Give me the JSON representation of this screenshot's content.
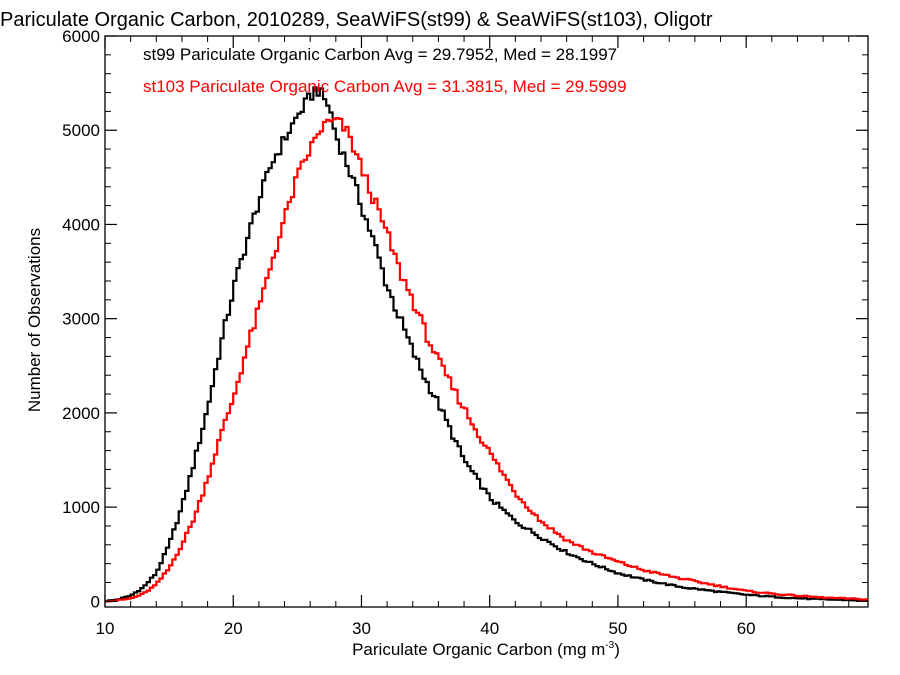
{
  "chart_data": {
    "type": "line",
    "title": "Pariculate Organic Carbon, 2010289, SeaWiFS(st99) & SeaWiFS(st103), Oligotr",
    "xlabel": "Pariculate Organic Carbon (mg m",
    "xlabel_sup": "-3",
    "xlabel_end": ")",
    "ylabel": "Number of Observations",
    "xlim": [
      10,
      69.5
    ],
    "ylim": [
      -60,
      6000
    ],
    "xticks": [
      10,
      20,
      30,
      40,
      50,
      60
    ],
    "yticks": [
      0,
      1000,
      2000,
      3000,
      4000,
      5000,
      6000
    ],
    "grid": false,
    "legend_position": "top-left",
    "series": [
      {
        "name": "st99 Pariculate Organic Carbon Avg = 29.7952, Med = 28.1997",
        "color": "#000000",
        "x": [
          10,
          11,
          12,
          13,
          14,
          15,
          16,
          17,
          18,
          19,
          20,
          21,
          22,
          23,
          24,
          25,
          26,
          26.5,
          27,
          27.5,
          28,
          29,
          30,
          31,
          32,
          33,
          34,
          35,
          36,
          37,
          38,
          39,
          40,
          42,
          44,
          46,
          48,
          50,
          52,
          55,
          58,
          60,
          63,
          66,
          69.5
        ],
        "y": [
          0,
          20,
          60,
          150,
          300,
          600,
          1000,
          1500,
          2050,
          2700,
          3300,
          3800,
          4250,
          4650,
          4900,
          5150,
          5350,
          5450,
          5350,
          5250,
          4950,
          4600,
          4200,
          3800,
          3350,
          3000,
          2650,
          2350,
          2100,
          1800,
          1500,
          1300,
          1100,
          850,
          680,
          520,
          400,
          300,
          230,
          150,
          100,
          70,
          40,
          20,
          10
        ]
      },
      {
        "name": "st103 Pariculate Organic Carbon Avg = 31.3815, Med = 29.5999",
        "color": "#ff0000",
        "x": [
          10,
          11,
          12,
          13,
          14,
          15,
          16,
          17,
          18,
          19,
          20,
          21,
          22,
          23,
          24,
          25,
          26,
          27,
          28,
          28.5,
          29,
          30,
          31,
          32,
          33,
          34,
          35,
          36,
          37,
          38,
          39,
          40,
          42,
          44,
          46,
          48,
          50,
          52,
          55,
          58,
          60,
          63,
          66,
          69.5
        ],
        "y": [
          0,
          10,
          30,
          80,
          180,
          350,
          600,
          900,
          1300,
          1750,
          2150,
          2650,
          3100,
          3600,
          4050,
          4500,
          4800,
          5050,
          5100,
          5050,
          4950,
          4600,
          4250,
          3900,
          3500,
          3200,
          2850,
          2550,
          2300,
          2050,
          1800,
          1580,
          1150,
          850,
          650,
          520,
          420,
          330,
          240,
          160,
          110,
          70,
          40,
          20
        ]
      }
    ]
  }
}
